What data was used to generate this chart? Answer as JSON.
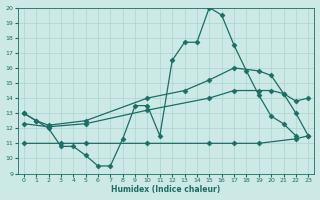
{
  "xlabel": "Humidex (Indice chaleur)",
  "xlim": [
    -0.5,
    23.5
  ],
  "ylim": [
    9,
    20
  ],
  "yticks": [
    9,
    10,
    11,
    12,
    13,
    14,
    15,
    16,
    17,
    18,
    19,
    20
  ],
  "xticks": [
    0,
    1,
    2,
    3,
    4,
    5,
    6,
    7,
    8,
    9,
    10,
    11,
    12,
    13,
    14,
    15,
    16,
    17,
    18,
    19,
    20,
    21,
    22,
    23
  ],
  "bg_color": "#cce9e5",
  "line_color": "#1a6e64",
  "grid_color": "#aad4cf",
  "marker": "D",
  "marker_size": 2.5,
  "line_width": 0.9,
  "line1_x": [
    0,
    1,
    2,
    3,
    4,
    5,
    6,
    7,
    8,
    9,
    10,
    11,
    12,
    13,
    14,
    15,
    16,
    17,
    18,
    19,
    20,
    21,
    22
  ],
  "line1_y": [
    13.0,
    12.5,
    12.0,
    10.8,
    10.8,
    10.2,
    9.5,
    9.5,
    11.3,
    13.5,
    13.5,
    11.5,
    16.5,
    17.7,
    17.7,
    20.0,
    19.5,
    17.5,
    15.8,
    14.2,
    12.8,
    12.3,
    11.5
  ],
  "line2_x": [
    0,
    1,
    2,
    5,
    10,
    13,
    15,
    17,
    19,
    20,
    21,
    22,
    23
  ],
  "line2_y": [
    13.0,
    12.5,
    12.2,
    12.5,
    14.0,
    14.5,
    15.2,
    16.0,
    15.8,
    15.5,
    14.3,
    13.0,
    11.5
  ],
  "line3_x": [
    0,
    2,
    5,
    10,
    15,
    17,
    19,
    20,
    21,
    22,
    23
  ],
  "line3_y": [
    12.3,
    12.1,
    12.3,
    13.2,
    14.0,
    14.5,
    14.5,
    14.5,
    14.3,
    13.8,
    14.0
  ],
  "line4_x": [
    0,
    3,
    5,
    10,
    15,
    17,
    19,
    22,
    23
  ],
  "line4_y": [
    11.0,
    11.0,
    11.0,
    11.0,
    11.0,
    11.0,
    11.0,
    11.3,
    11.5
  ]
}
